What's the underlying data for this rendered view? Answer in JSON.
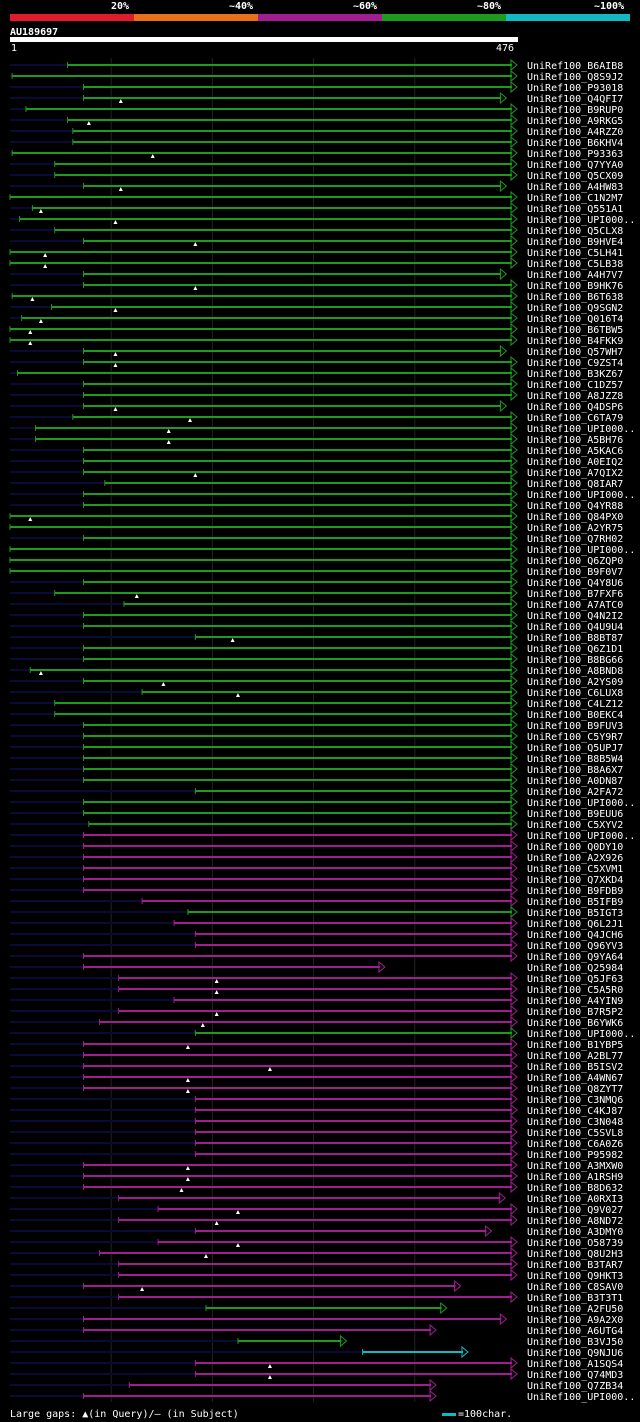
{
  "legend": {
    "labels": [
      "20%",
      "~40%",
      "~60%",
      "~80%",
      "~100%"
    ],
    "colors": [
      "#e01c2c",
      "#e8701c",
      "#a01e90",
      "#1e9a1e",
      "#12b8c2"
    ]
  },
  "query": {
    "id": "AU189697",
    "start": "1",
    "end": "476",
    "length": 476
  },
  "footer": {
    "gaps_text": "Large gaps: ▲(in Query)/— (in Subject)",
    "scale_text": "=100char."
  },
  "rows": [
    {
      "name": "UniRef100_B6AIB8",
      "s": 55,
      "e": 476,
      "c": "g"
    },
    {
      "name": "UniRef100_Q8S9J2",
      "s": 3,
      "e": 476,
      "c": "g"
    },
    {
      "name": "UniRef100_P93018",
      "s": 70,
      "e": 476,
      "c": "g"
    },
    {
      "name": "UniRef100_Q4QFI7",
      "s": 70,
      "e": 466,
      "c": "g",
      "m": 105
    },
    {
      "name": "UniRef100_B9RUP0",
      "s": 16,
      "e": 476,
      "c": "g"
    },
    {
      "name": "UniRef100_A9RKG5",
      "s": 55,
      "e": 476,
      "c": "g",
      "m": 75
    },
    {
      "name": "UniRef100_A4RZZ0",
      "s": 60,
      "e": 476,
      "c": "g"
    },
    {
      "name": "UniRef100_B6KHV4",
      "s": 60,
      "e": 476,
      "c": "g"
    },
    {
      "name": "UniRef100_P93363",
      "s": 3,
      "e": 476,
      "c": "g",
      "m": 135
    },
    {
      "name": "UniRef100_Q7YYA0",
      "s": 43,
      "e": 476,
      "c": "g"
    },
    {
      "name": "UniRef100_Q5CX09",
      "s": 43,
      "e": 476,
      "c": "g"
    },
    {
      "name": "UniRef100_A4HW83",
      "s": 70,
      "e": 466,
      "c": "g",
      "m": 105
    },
    {
      "name": "UniRef100_C1N2M7",
      "s": 1,
      "e": 476,
      "c": "g"
    },
    {
      "name": "UniRef100_Q551A1",
      "s": 22,
      "e": 476,
      "c": "g",
      "m": 30
    },
    {
      "name": "UniRef100_UPI000..",
      "s": 10,
      "e": 476,
      "c": "g",
      "m": 100
    },
    {
      "name": "UniRef100_Q5CLX8",
      "s": 43,
      "e": 476,
      "c": "g"
    },
    {
      "name": "UniRef100_B9HVE4",
      "s": 70,
      "e": 476,
      "c": "g",
      "m": 175
    },
    {
      "name": "UniRef100_C5LH41",
      "s": 1,
      "e": 476,
      "c": "g",
      "m": 34
    },
    {
      "name": "UniRef100_C5LB38",
      "s": 1,
      "e": 476,
      "c": "g",
      "m": 34
    },
    {
      "name": "UniRef100_A4H7V7",
      "s": 70,
      "e": 466,
      "c": "g"
    },
    {
      "name": "UniRef100_B9HK76",
      "s": 70,
      "e": 476,
      "c": "g",
      "m": 175
    },
    {
      "name": "UniRef100_B6T638",
      "s": 3,
      "e": 476,
      "c": "g",
      "m": 22
    },
    {
      "name": "UniRef100_Q9SGN2",
      "s": 40,
      "e": 476,
      "c": "g",
      "m": 100
    },
    {
      "name": "UniRef100_Q016T4",
      "s": 12,
      "e": 476,
      "c": "g",
      "m": 30
    },
    {
      "name": "UniRef100_B6TBW5",
      "s": 1,
      "e": 476,
      "c": "g",
      "m": 20
    },
    {
      "name": "UniRef100_B4FKK9",
      "s": 1,
      "e": 476,
      "c": "g",
      "m": 20
    },
    {
      "name": "UniRef100_Q57WH7",
      "s": 70,
      "e": 466,
      "c": "g",
      "m": 100
    },
    {
      "name": "UniRef100_C9ZST4",
      "s": 70,
      "e": 476,
      "c": "g",
      "m": 100
    },
    {
      "name": "UniRef100_B3KZ67",
      "s": 8,
      "e": 476,
      "c": "g"
    },
    {
      "name": "UniRef100_C1DZ57",
      "s": 70,
      "e": 476,
      "c": "g"
    },
    {
      "name": "UniRef100_A8JZZ8",
      "s": 70,
      "e": 476,
      "c": "g"
    },
    {
      "name": "UniRef100_Q4DSP6",
      "s": 70,
      "e": 466,
      "c": "g",
      "m": 100
    },
    {
      "name": "UniRef100_C6TA79",
      "s": 60,
      "e": 476,
      "c": "g",
      "m": 170
    },
    {
      "name": "UniRef100_UPI000..",
      "s": 25,
      "e": 476,
      "c": "g",
      "m": 150
    },
    {
      "name": "UniRef100_A5BH76",
      "s": 25,
      "e": 476,
      "c": "g",
      "m": 150
    },
    {
      "name": "UniRef100_A5KAC6",
      "s": 70,
      "e": 476,
      "c": "g"
    },
    {
      "name": "UniRef100_A0EIQ2",
      "s": 70,
      "e": 476,
      "c": "g"
    },
    {
      "name": "UniRef100_A7QIX2",
      "s": 70,
      "e": 476,
      "c": "g",
      "m": 175
    },
    {
      "name": "UniRef100_Q8IAR7",
      "s": 90,
      "e": 476,
      "c": "g"
    },
    {
      "name": "UniRef100_UPI000..",
      "s": 70,
      "e": 476,
      "c": "g"
    },
    {
      "name": "UniRef100_Q4YR88",
      "s": 70,
      "e": 476,
      "c": "g"
    },
    {
      "name": "UniRef100_Q84PX0",
      "s": 1,
      "e": 476,
      "c": "g",
      "m": 20
    },
    {
      "name": "UniRef100_A2YR75",
      "s": 1,
      "e": 476,
      "c": "g"
    },
    {
      "name": "UniRef100_Q7RH02",
      "s": 70,
      "e": 476,
      "c": "g"
    },
    {
      "name": "UniRef100_UPI000..",
      "s": 1,
      "e": 476,
      "c": "g"
    },
    {
      "name": "UniRef100_Q6ZQP0",
      "s": 1,
      "e": 476,
      "c": "g"
    },
    {
      "name": "UniRef100_B9F0V7",
      "s": 1,
      "e": 476,
      "c": "g"
    },
    {
      "name": "UniRef100_Q4Y8U6",
      "s": 70,
      "e": 476,
      "c": "g"
    },
    {
      "name": "UniRef100_B7FXF6",
      "s": 43,
      "e": 476,
      "c": "g",
      "m": 120
    },
    {
      "name": "UniRef100_A7ATC0",
      "s": 108,
      "e": 476,
      "c": "g"
    },
    {
      "name": "UniRef100_Q4N2I2",
      "s": 70,
      "e": 476,
      "c": "g"
    },
    {
      "name": "UniRef100_Q4U9U4",
      "s": 70,
      "e": 476,
      "c": "g"
    },
    {
      "name": "UniRef100_B8BT87",
      "s": 175,
      "e": 476,
      "c": "g",
      "m": 210
    },
    {
      "name": "UniRef100_Q6Z1D1",
      "s": 70,
      "e": 476,
      "c": "g"
    },
    {
      "name": "UniRef100_B8BG66",
      "s": 70,
      "e": 476,
      "c": "g"
    },
    {
      "name": "UniRef100_A8BND8",
      "s": 20,
      "e": 476,
      "c": "g",
      "m": 30
    },
    {
      "name": "UniRef100_A2YS09",
      "s": 70,
      "e": 476,
      "c": "g",
      "m": 145
    },
    {
      "name": "UniRef100_C6LUX8",
      "s": 125,
      "e": 476,
      "c": "g",
      "m": 215
    },
    {
      "name": "UniRef100_C4LZ12",
      "s": 43,
      "e": 476,
      "c": "g"
    },
    {
      "name": "UniRef100_B0EKC4",
      "s": 43,
      "e": 476,
      "c": "g"
    },
    {
      "name": "UniRef100_B9FUV3",
      "s": 70,
      "e": 476,
      "c": "g"
    },
    {
      "name": "UniRef100_C5Y9R7",
      "s": 70,
      "e": 476,
      "c": "g"
    },
    {
      "name": "UniRef100_Q5UPJ7",
      "s": 70,
      "e": 476,
      "c": "g"
    },
    {
      "name": "UniRef100_B8B5W4",
      "s": 70,
      "e": 476,
      "c": "g"
    },
    {
      "name": "UniRef100_B8A6X7",
      "s": 70,
      "e": 476,
      "c": "g"
    },
    {
      "name": "UniRef100_A0DN87",
      "s": 70,
      "e": 476,
      "c": "g"
    },
    {
      "name": "UniRef100_A2FA72",
      "s": 175,
      "e": 476,
      "c": "g"
    },
    {
      "name": "UniRef100_UPI000..",
      "s": 70,
      "e": 476,
      "c": "g"
    },
    {
      "name": "UniRef100_B9EUU6",
      "s": 70,
      "e": 476,
      "c": "g"
    },
    {
      "name": "UniRef100_C5XYV2",
      "s": 75,
      "e": 476,
      "c": "g"
    },
    {
      "name": "UniRef100_UPI000..",
      "s": 70,
      "e": 476,
      "c": "p"
    },
    {
      "name": "UniRef100_Q0DY10",
      "s": 70,
      "e": 476,
      "c": "p"
    },
    {
      "name": "UniRef100_A2X926",
      "s": 70,
      "e": 476,
      "c": "p"
    },
    {
      "name": "UniRef100_C5XVM1",
      "s": 70,
      "e": 476,
      "c": "p"
    },
    {
      "name": "UniRef100_Q7XKD4",
      "s": 70,
      "e": 476,
      "c": "p"
    },
    {
      "name": "UniRef100_B9FDB9",
      "s": 70,
      "e": 476,
      "c": "p"
    },
    {
      "name": "UniRef100_B5IFB9",
      "s": 125,
      "e": 476,
      "c": "p"
    },
    {
      "name": "UniRef100_B5IGT3",
      "s": 168,
      "e": 476,
      "c": "g"
    },
    {
      "name": "UniRef100_Q6L2J1",
      "s": 155,
      "e": 476,
      "c": "p"
    },
    {
      "name": "UniRef100_Q4JCH6",
      "s": 175,
      "e": 476,
      "c": "p"
    },
    {
      "name": "UniRef100_Q96YV3",
      "s": 175,
      "e": 476,
      "c": "p"
    },
    {
      "name": "UniRef100_Q9YA64",
      "s": 70,
      "e": 476,
      "c": "p"
    },
    {
      "name": "UniRef100_Q25984",
      "s": 70,
      "e": 352,
      "c": "p"
    },
    {
      "name": "UniRef100_Q5JF63",
      "s": 103,
      "e": 476,
      "c": "p",
      "m": 195
    },
    {
      "name": "UniRef100_C5A5R0",
      "s": 103,
      "e": 476,
      "c": "p",
      "m": 195
    },
    {
      "name": "UniRef100_A4YIN9",
      "s": 155,
      "e": 476,
      "c": "p"
    },
    {
      "name": "UniRef100_B7R5P2",
      "s": 103,
      "e": 476,
      "c": "p",
      "m": 195
    },
    {
      "name": "UniRef100_B6YWK6",
      "s": 85,
      "e": 476,
      "c": "p",
      "m": 182
    },
    {
      "name": "UniRef100_UPI000..",
      "s": 175,
      "e": 476,
      "c": "g"
    },
    {
      "name": "UniRef100_B1YBP5",
      "s": 70,
      "e": 476,
      "c": "p",
      "m": 168
    },
    {
      "name": "UniRef100_A2BL77",
      "s": 70,
      "e": 476,
      "c": "p"
    },
    {
      "name": "UniRef100_B5ISV2",
      "s": 70,
      "e": 476,
      "c": "p",
      "m": 245
    },
    {
      "name": "UniRef100_A4WN67",
      "s": 70,
      "e": 476,
      "c": "p",
      "m": 168
    },
    {
      "name": "UniRef100_Q8ZYT7",
      "s": 70,
      "e": 476,
      "c": "p",
      "m": 168
    },
    {
      "name": "UniRef100_C3NMQ6",
      "s": 175,
      "e": 476,
      "c": "p"
    },
    {
      "name": "UniRef100_C4KJ87",
      "s": 175,
      "e": 476,
      "c": "p"
    },
    {
      "name": "UniRef100_C3N048",
      "s": 175,
      "e": 476,
      "c": "p"
    },
    {
      "name": "UniRef100_C5SVL8",
      "s": 175,
      "e": 476,
      "c": "p"
    },
    {
      "name": "UniRef100_C6A0Z6",
      "s": 175,
      "e": 476,
      "c": "p"
    },
    {
      "name": "UniRef100_P95982",
      "s": 175,
      "e": 476,
      "c": "p"
    },
    {
      "name": "UniRef100_A3MXW0",
      "s": 70,
      "e": 476,
      "c": "p",
      "m": 168
    },
    {
      "name": "UniRef100_A1RSH9",
      "s": 70,
      "e": 476,
      "c": "p",
      "m": 168
    },
    {
      "name": "UniRef100_B8D632",
      "s": 70,
      "e": 476,
      "c": "p",
      "m": 162
    },
    {
      "name": "UniRef100_A0RXI3",
      "s": 103,
      "e": 465,
      "c": "p"
    },
    {
      "name": "UniRef100_Q9V027",
      "s": 140,
      "e": 476,
      "c": "p",
      "m": 215
    },
    {
      "name": "UniRef100_A8ND72",
      "s": 103,
      "e": 476,
      "c": "p",
      "m": 195
    },
    {
      "name": "UniRef100_A3DMY0",
      "s": 175,
      "e": 452,
      "c": "p"
    },
    {
      "name": "UniRef100_O58739",
      "s": 140,
      "e": 476,
      "c": "p",
      "m": 215
    },
    {
      "name": "UniRef100_Q8U2H3",
      "s": 85,
      "e": 476,
      "c": "p",
      "m": 185
    },
    {
      "name": "UniRef100_B3TAR7",
      "s": 103,
      "e": 476,
      "c": "p"
    },
    {
      "name": "UniRef100_Q9HKT3",
      "s": 103,
      "e": 476,
      "c": "p"
    },
    {
      "name": "UniRef100_C8SAV0",
      "s": 70,
      "e": 423,
      "c": "p",
      "m": 125
    },
    {
      "name": "UniRef100_B3T3T1",
      "s": 103,
      "e": 476,
      "c": "p"
    },
    {
      "name": "UniRef100_A2FU50",
      "s": 185,
      "e": 410,
      "c": "g"
    },
    {
      "name": "UniRef100_A9A2X0",
      "s": 70,
      "e": 466,
      "c": "p"
    },
    {
      "name": "UniRef100_A6UTG4",
      "s": 70,
      "e": 400,
      "c": "p"
    },
    {
      "name": "UniRef100_B3VJ50",
      "s": 215,
      "e": 316,
      "c": "g"
    },
    {
      "name": "UniRef100_Q9NJU6",
      "s": 332,
      "e": 430,
      "c": "c"
    },
    {
      "name": "UniRef100_A1SQS4",
      "s": 175,
      "e": 476,
      "c": "p",
      "m": 245
    },
    {
      "name": "UniRef100_Q74MD3",
      "s": 175,
      "e": 476,
      "c": "p",
      "m": 245
    },
    {
      "name": "UniRef100_Q7ZB34",
      "s": 113,
      "e": 400,
      "c": "p"
    },
    {
      "name": "UniRef100_UPI000..",
      "s": 70,
      "e": 400,
      "c": "p"
    }
  ]
}
